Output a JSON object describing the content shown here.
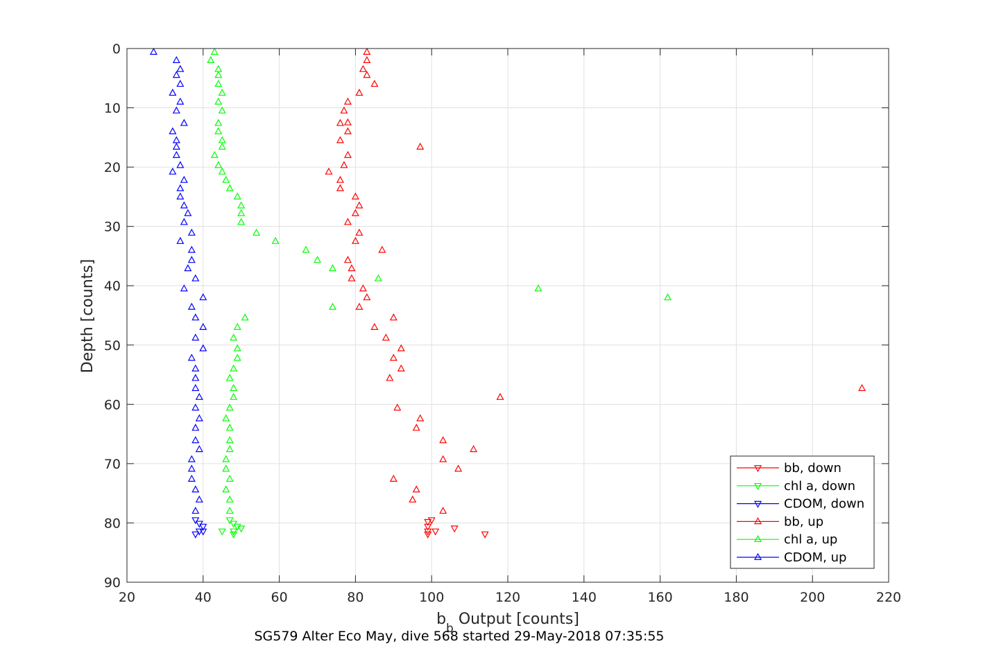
{
  "chart_data": {
    "type": "scatter",
    "title": "",
    "xlabel_base": "b",
    "xlabel_sub": "b",
    "xlabel_rest": " Output [counts]",
    "ylabel": "Depth [counts]",
    "caption": "SG579 Alter Eco May, dive 568 started 29-May-2018 07:35:55",
    "xlim": [
      20,
      220
    ],
    "ylim": [
      0,
      90
    ],
    "y_reversed": true,
    "xticks": [
      20,
      40,
      60,
      80,
      100,
      120,
      140,
      160,
      180,
      200,
      220
    ],
    "yticks": [
      0,
      10,
      20,
      30,
      40,
      50,
      60,
      70,
      80,
      90
    ],
    "grid": true,
    "legend_position": "bottom-right",
    "colors": {
      "red": "#ff0000",
      "green": "#00ff00",
      "blue": "#0000ff",
      "axis": "#262626",
      "grid": "#e0e0e0"
    },
    "series": [
      {
        "name": "bb, down",
        "color": "#ff0000",
        "marker": "triangle-down",
        "points": [
          [
            99,
            79.8
          ],
          [
            99,
            80.6
          ],
          [
            100,
            79.5
          ],
          [
            99,
            81.4
          ],
          [
            101,
            81.4
          ],
          [
            106,
            80.9
          ],
          [
            114,
            81.9
          ],
          [
            99,
            81.9
          ]
        ]
      },
      {
        "name": "chl a, down",
        "color": "#00ff00",
        "marker": "triangle-down",
        "points": [
          [
            47,
            79.5
          ],
          [
            48,
            80.1
          ],
          [
            49,
            80.6
          ],
          [
            50,
            80.9
          ],
          [
            45,
            81.4
          ],
          [
            48,
            81.9
          ],
          [
            48,
            81.4
          ]
        ]
      },
      {
        "name": "CDOM, down",
        "color": "#0000ff",
        "marker": "triangle-down",
        "points": [
          [
            38,
            79.5
          ],
          [
            39,
            80.1
          ],
          [
            40,
            80.6
          ],
          [
            39,
            81.4
          ],
          [
            40,
            81.4
          ],
          [
            38,
            81.9
          ]
        ]
      },
      {
        "name": "bb, up",
        "color": "#ff0000",
        "marker": "triangle-up",
        "points": [
          [
            83,
            0.6
          ],
          [
            83,
            2
          ],
          [
            82,
            3.5
          ],
          [
            83,
            4.5
          ],
          [
            85,
            6
          ],
          [
            81,
            7.5
          ],
          [
            78,
            9
          ],
          [
            77,
            10.5
          ],
          [
            78,
            12.5
          ],
          [
            76,
            12.6
          ],
          [
            78,
            14
          ],
          [
            76,
            15.5
          ],
          [
            97,
            16.6
          ],
          [
            78,
            18
          ],
          [
            77,
            19.7
          ],
          [
            73,
            20.8
          ],
          [
            76,
            22.2
          ],
          [
            76,
            23.6
          ],
          [
            80,
            25
          ],
          [
            81,
            26.5
          ],
          [
            80,
            27.8
          ],
          [
            78,
            29.3
          ],
          [
            81,
            31.1
          ],
          [
            80,
            32.5
          ],
          [
            87,
            34
          ],
          [
            78,
            35.7
          ],
          [
            79,
            37.1
          ],
          [
            79,
            38.8
          ],
          [
            82,
            40.5
          ],
          [
            83,
            42
          ],
          [
            81,
            43.6
          ],
          [
            90,
            45.4
          ],
          [
            85,
            47
          ],
          [
            88,
            48.8
          ],
          [
            92,
            50.6
          ],
          [
            90,
            52.2
          ],
          [
            92,
            54
          ],
          [
            89,
            55.6
          ],
          [
            213,
            57.3
          ],
          [
            118,
            58.8
          ],
          [
            91,
            60.6
          ],
          [
            97,
            62.4
          ],
          [
            96,
            64
          ],
          [
            103,
            66.1
          ],
          [
            111,
            67.6
          ],
          [
            103,
            69.3
          ],
          [
            107,
            70.9
          ],
          [
            90,
            72.6
          ],
          [
            96,
            74.4
          ],
          [
            95,
            76.1
          ],
          [
            103,
            78
          ]
        ]
      },
      {
        "name": "chl a, up",
        "color": "#00ff00",
        "marker": "triangle-up",
        "points": [
          [
            43,
            0.6
          ],
          [
            42,
            2
          ],
          [
            44,
            3.5
          ],
          [
            44,
            4.5
          ],
          [
            44,
            6
          ],
          [
            45,
            7.5
          ],
          [
            44,
            9
          ],
          [
            45,
            10.5
          ],
          [
            44,
            12.6
          ],
          [
            44,
            14
          ],
          [
            45,
            15.5
          ],
          [
            45,
            16.6
          ],
          [
            43,
            18
          ],
          [
            44,
            19.7
          ],
          [
            45,
            20.8
          ],
          [
            46,
            22.2
          ],
          [
            47,
            23.6
          ],
          [
            49,
            25
          ],
          [
            50,
            26.5
          ],
          [
            50,
            27.8
          ],
          [
            50,
            29.3
          ],
          [
            54,
            31.1
          ],
          [
            59,
            32.5
          ],
          [
            67,
            34
          ],
          [
            70,
            35.7
          ],
          [
            74,
            37.1
          ],
          [
            86,
            38.8
          ],
          [
            128,
            40.5
          ],
          [
            162,
            42
          ],
          [
            74,
            43.6
          ],
          [
            51,
            45.4
          ],
          [
            49,
            47
          ],
          [
            48,
            48.8
          ],
          [
            49,
            50.6
          ],
          [
            49,
            52.2
          ],
          [
            48,
            54
          ],
          [
            47,
            55.6
          ],
          [
            48,
            57.3
          ],
          [
            48,
            58.8
          ],
          [
            47,
            60.6
          ],
          [
            46,
            62.4
          ],
          [
            47,
            64
          ],
          [
            47,
            66.1
          ],
          [
            47,
            67.6
          ],
          [
            46,
            69.3
          ],
          [
            46,
            70.9
          ],
          [
            47,
            72.6
          ],
          [
            46,
            74.4
          ],
          [
            47,
            76.1
          ],
          [
            47,
            78
          ]
        ]
      },
      {
        "name": "CDOM, up",
        "color": "#0000ff",
        "marker": "triangle-up",
        "points": [
          [
            27,
            0.6
          ],
          [
            33,
            2
          ],
          [
            34,
            3.5
          ],
          [
            33,
            4.5
          ],
          [
            34,
            6
          ],
          [
            32,
            7.5
          ],
          [
            34,
            9
          ],
          [
            33,
            10.5
          ],
          [
            35,
            12.6
          ],
          [
            32,
            14
          ],
          [
            33,
            15.5
          ],
          [
            33,
            16.6
          ],
          [
            33,
            18
          ],
          [
            34,
            19.7
          ],
          [
            32,
            20.8
          ],
          [
            35,
            22.2
          ],
          [
            34,
            23.6
          ],
          [
            34,
            25
          ],
          [
            35,
            26.5
          ],
          [
            36,
            27.8
          ],
          [
            35,
            29.3
          ],
          [
            37,
            31.1
          ],
          [
            34,
            32.5
          ],
          [
            37,
            34
          ],
          [
            37,
            35.7
          ],
          [
            36,
            37.1
          ],
          [
            38,
            38.8
          ],
          [
            35,
            40.5
          ],
          [
            40,
            42
          ],
          [
            37,
            43.6
          ],
          [
            38,
            45.4
          ],
          [
            40,
            47
          ],
          [
            38,
            48.8
          ],
          [
            40,
            50.6
          ],
          [
            37,
            52.2
          ],
          [
            38,
            54
          ],
          [
            38,
            55.6
          ],
          [
            38,
            57.3
          ],
          [
            39,
            58.8
          ],
          [
            38,
            60.6
          ],
          [
            39,
            62.4
          ],
          [
            38,
            64
          ],
          [
            38,
            66.1
          ],
          [
            39,
            67.6
          ],
          [
            37,
            69.3
          ],
          [
            37,
            70.9
          ],
          [
            37,
            72.6
          ],
          [
            38,
            74.4
          ],
          [
            39,
            76.1
          ],
          [
            38,
            78
          ]
        ]
      }
    ]
  }
}
